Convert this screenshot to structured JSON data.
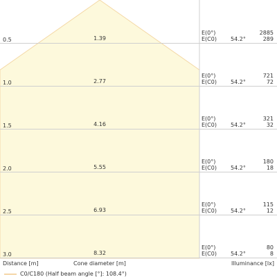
{
  "colors": {
    "cone_fill": "#fdf9dc",
    "cone_stroke": "#f4d8a6",
    "grid": "#cfcfcf",
    "legend_line": "#f2c98a"
  },
  "rows": [
    {
      "distance": "0.5",
      "diameter": "1.39",
      "e_label_1": "E(0°)",
      "e_label_2": "E(C0)",
      "angle": "54.2°",
      "e_value_1": "2885",
      "e_value_2": "289"
    },
    {
      "distance": "1.0",
      "diameter": "2.77",
      "e_label_1": "E(0°)",
      "e_label_2": "E(C0)",
      "angle": "54.2°",
      "e_value_1": "721",
      "e_value_2": "72"
    },
    {
      "distance": "1.5",
      "diameter": "4.16",
      "e_label_1": "E(0°)",
      "e_label_2": "E(C0)",
      "angle": "54.2°",
      "e_value_1": "321",
      "e_value_2": "32"
    },
    {
      "distance": "2.0",
      "diameter": "5.55",
      "e_label_1": "E(0°)",
      "e_label_2": "E(C0)",
      "angle": "54.2°",
      "e_value_1": "180",
      "e_value_2": "18"
    },
    {
      "distance": "2.5",
      "diameter": "6.93",
      "e_label_1": "E(0°)",
      "e_label_2": "E(C0)",
      "angle": "54.2°",
      "e_value_1": "115",
      "e_value_2": "12"
    },
    {
      "distance": "3.0",
      "diameter": "8.32",
      "e_label_1": "E(0°)",
      "e_label_2": "E(C0)",
      "angle": "54.2°",
      "e_value_1": "80",
      "e_value_2": "8"
    }
  ],
  "footer": {
    "distance_label": "Distance [m]",
    "cone_label": "Cone diameter [m]",
    "illuminance_label": "Illuminance [lx]",
    "legend_label": "C0/C180 (Half beam angle [°]: 108.4°)"
  }
}
